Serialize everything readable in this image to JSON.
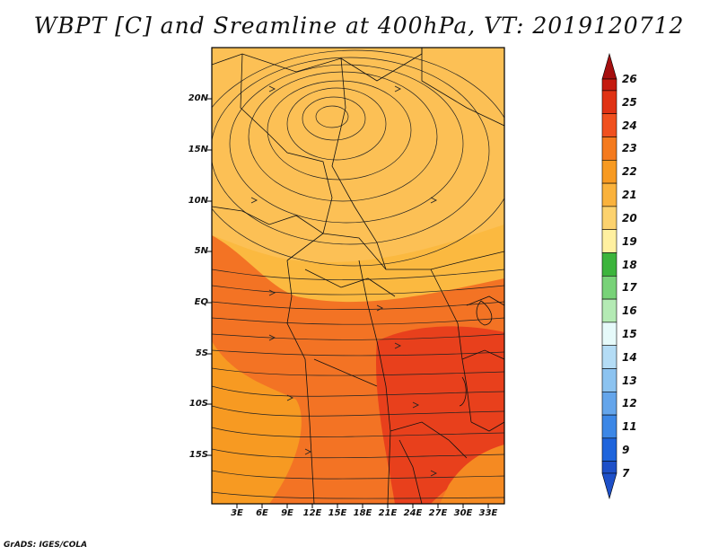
{
  "title": "WBPT [C] and Sreamline at 400hPa, VT: 2019120712",
  "credit": "GrADS: IGES/COLA",
  "y_axis_labels": [
    "20N",
    "15N",
    "10N",
    "5N",
    "EQ",
    "5S",
    "10S",
    "15S"
  ],
  "x_axis_labels": [
    "3E",
    "6E",
    "9E",
    "12E",
    "15E",
    "18E",
    "21E",
    "24E",
    "27E",
    "30E",
    "33E"
  ],
  "colorbar": {
    "labels": [
      "26",
      "25",
      "24",
      "23",
      "22",
      "21",
      "20",
      "19",
      "18",
      "17",
      "16",
      "15",
      "14",
      "13",
      "12",
      "11",
      "9",
      "7"
    ],
    "colors": [
      "#a50f0f",
      "#c41a0f",
      "#e03214",
      "#f0501e",
      "#f47a1e",
      "#f79a22",
      "#fab23c",
      "#fcd26e",
      "#fff0a0",
      "#3cb43c",
      "#78d278",
      "#b4eab4",
      "#e6fafa",
      "#b4dcf5",
      "#8cc3f0",
      "#64a5eb",
      "#3c87e6",
      "#1e64dc",
      "#1e50c8"
    ]
  },
  "map": {
    "lon_range": [
      0,
      35
    ],
    "lat_range": [
      -20,
      25
    ],
    "dominant_color": "#fbb940",
    "warm_color": "#f37324",
    "hot_color": "#e8401c",
    "vortex_center": "16E 18N"
  }
}
